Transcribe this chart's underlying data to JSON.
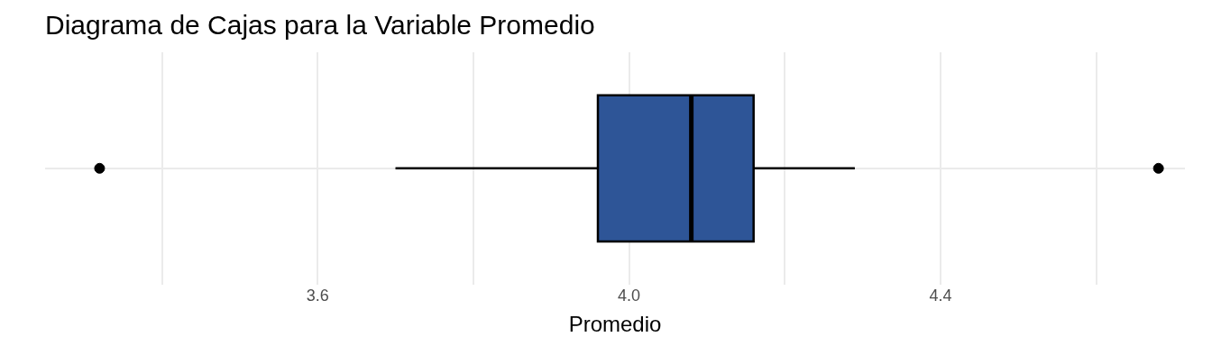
{
  "chart_data": {
    "type": "box",
    "title": "Diagrama de Cajas para la Variable Promedio",
    "xlabel": "Promedio",
    "orientation": "horizontal",
    "categories": [
      null
    ],
    "series": [
      {
        "color": "#2e5597",
        "boxes": [
          {
            "low": 3.7,
            "q1": 3.96,
            "median": 4.08,
            "q3": 4.16,
            "high": 4.29,
            "outliers": [
              3.32,
              4.68
            ]
          }
        ]
      }
    ],
    "xlim": [
      3.25,
      4.714
    ],
    "xticks": [
      {
        "value": 3.4,
        "label": null
      },
      3.6,
      {
        "value": 3.8,
        "label": null
      },
      {
        "value": 4,
        "label": "4.0"
      },
      {
        "value": 4.2,
        "label": null
      },
      4.4,
      {
        "value": 4.6,
        "label": null
      }
    ],
    "grid": true,
    "legend": false
  }
}
